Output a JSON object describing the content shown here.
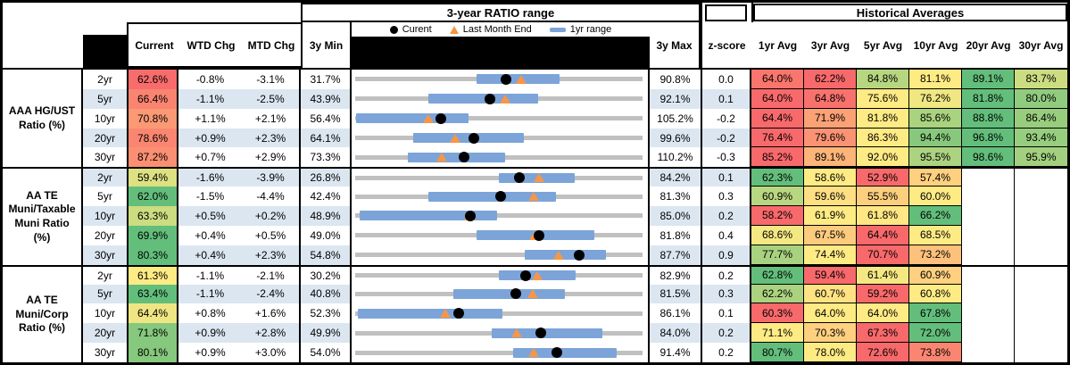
{
  "colors": {
    "scale_low": "#F8696B",
    "scale_mid": "#FFEB84",
    "scale_high": "#63BE7B",
    "stripe": "#DCE6F1",
    "range_line_gray": "#C0C0C0",
    "range_bar_blue": "#7CA4D8",
    "triangle_orange": "#F79646",
    "dot_black": "#000000"
  },
  "chart_data": {
    "type": "table",
    "range_chart_title": "3-year RATIO range",
    "hist_title": "Historical Averages",
    "legend": [
      "Curent",
      "Last Month End",
      "1yr range"
    ],
    "columns": [
      "Current",
      "WTD Chg",
      "MTD Chg",
      "3y Min",
      "3y Max",
      "z-score",
      "1yr Avg",
      "3yr Avg",
      "5yr Avg",
      "10yr Avg",
      "20yr Avg",
      "30yr Avg"
    ],
    "groups": [
      {
        "label": "AAA HG/UST\nRatio (%)",
        "rows": [
          {
            "tenor": "2yr",
            "current": 62.6,
            "wtd": -0.8,
            "mtd": -3.1,
            "min3y": 31.7,
            "max3y": 90.8,
            "zscore": 0.0,
            "last_month_end": 65.7,
            "yr1_range": [
              56.4,
              73.5
            ],
            "avgs": [
              64.0,
              62.2,
              84.8,
              81.1,
              89.1,
              83.7
            ]
          },
          {
            "tenor": "5yr",
            "current": 66.4,
            "wtd": -1.1,
            "mtd": -2.5,
            "min3y": 43.9,
            "max3y": 92.1,
            "zscore": 0.1,
            "last_month_end": 68.9,
            "yr1_range": [
              56.0,
              74.4
            ],
            "avgs": [
              64.0,
              64.8,
              75.6,
              76.2,
              81.8,
              80.0
            ]
          },
          {
            "tenor": "10yr",
            "current": 70.8,
            "wtd": 1.1,
            "mtd": 2.1,
            "min3y": 56.4,
            "max3y": 105.2,
            "zscore": -0.2,
            "last_month_end": 68.7,
            "yr1_range": [
              56.4,
              75.5
            ],
            "avgs": [
              64.4,
              71.9,
              81.8,
              85.6,
              88.8,
              86.4
            ]
          },
          {
            "tenor": "20yr",
            "current": 78.6,
            "wtd": 0.9,
            "mtd": 2.3,
            "min3y": 64.1,
            "max3y": 99.6,
            "zscore": -0.2,
            "last_month_end": 76.3,
            "yr1_range": [
              71.2,
              84.8
            ],
            "avgs": [
              76.4,
              79.6,
              86.3,
              94.4,
              96.8,
              93.4
            ]
          },
          {
            "tenor": "30yr",
            "current": 87.2,
            "wtd": 0.7,
            "mtd": 2.9,
            "min3y": 73.3,
            "max3y": 110.2,
            "zscore": -0.3,
            "last_month_end": 84.3,
            "yr1_range": [
              80.0,
              92.4
            ],
            "avgs": [
              85.2,
              89.1,
              92.0,
              95.5,
              98.6,
              95.9
            ]
          }
        ]
      },
      {
        "label": "AA TE\nMuni/Taxable\nMuni Ratio\n(%)",
        "rows": [
          {
            "tenor": "2yr",
            "current": 59.4,
            "wtd": -1.6,
            "mtd": -3.9,
            "min3y": 26.8,
            "max3y": 84.2,
            "zscore": 0.1,
            "last_month_end": 63.3,
            "yr1_range": [
              55.3,
              70.4
            ],
            "avgs": [
              62.3,
              58.6,
              52.9,
              57.4,
              null,
              null
            ]
          },
          {
            "tenor": "5yr",
            "current": 62.0,
            "wtd": -1.5,
            "mtd": -4.4,
            "min3y": 42.4,
            "max3y": 81.3,
            "zscore": 0.3,
            "last_month_end": 66.4,
            "yr1_range": [
              52.2,
              69.5
            ],
            "avgs": [
              60.9,
              59.6,
              55.5,
              60.0,
              null,
              null
            ],
            "avg_bg_overrides": {
              "2": "#FBCF7D"
            }
          },
          {
            "tenor": "10yr",
            "current": 63.3,
            "wtd": 0.5,
            "mtd": 0.2,
            "min3y": 48.9,
            "max3y": 85.0,
            "zscore": 0.2,
            "last_month_end": 63.1,
            "yr1_range": [
              49.3,
              66.6
            ],
            "avgs": [
              58.2,
              61.9,
              61.8,
              66.2,
              null,
              null
            ]
          },
          {
            "tenor": "20yr",
            "current": 69.9,
            "wtd": 0.4,
            "mtd": 0.5,
            "min3y": 49.0,
            "max3y": 81.8,
            "zscore": 0.4,
            "last_month_end": 69.4,
            "yr1_range": [
              62.8,
              76.2
            ],
            "avgs": [
              68.6,
              67.5,
              64.4,
              68.5,
              null,
              null
            ]
          },
          {
            "tenor": "30yr",
            "current": 80.3,
            "wtd": 0.4,
            "mtd": 2.3,
            "min3y": 54.8,
            "max3y": 87.7,
            "zscore": 0.9,
            "last_month_end": 78.0,
            "yr1_range": [
              74.1,
              83.4
            ],
            "avgs": [
              77.7,
              74.4,
              70.7,
              73.2,
              null,
              null
            ]
          }
        ]
      },
      {
        "label": "AA TE\nMuni/Corp\nRatio (%)",
        "rows": [
          {
            "tenor": "2yr",
            "current": 61.3,
            "wtd": -1.1,
            "mtd": -2.1,
            "min3y": 30.2,
            "max3y": 82.9,
            "zscore": 0.2,
            "last_month_end": 63.4,
            "yr1_range": [
              56.4,
              70.5
            ],
            "avgs": [
              62.8,
              59.4,
              61.4,
              60.9,
              null,
              null
            ]
          },
          {
            "tenor": "5yr",
            "current": 63.4,
            "wtd": -1.1,
            "mtd": -2.4,
            "min3y": 40.8,
            "max3y": 81.5,
            "zscore": 0.3,
            "last_month_end": 65.8,
            "yr1_range": [
              54.6,
              70.4
            ],
            "avgs": [
              62.2,
              60.7,
              59.2,
              60.8,
              null,
              null
            ]
          },
          {
            "tenor": "10yr",
            "current": 64.4,
            "wtd": 0.8,
            "mtd": 1.6,
            "min3y": 52.3,
            "max3y": 86.1,
            "zscore": 0.1,
            "last_month_end": 62.8,
            "yr1_range": [
              52.5,
              69.5
            ],
            "avgs": [
              60.3,
              64.0,
              64.0,
              67.8,
              null,
              null
            ]
          },
          {
            "tenor": "20yr",
            "current": 71.8,
            "wtd": 0.9,
            "mtd": 2.8,
            "min3y": 49.9,
            "max3y": 84.0,
            "zscore": 0.2,
            "last_month_end": 69.0,
            "yr1_range": [
              66.0,
              79.1
            ],
            "avgs": [
              71.1,
              70.3,
              67.3,
              72.0,
              null,
              null
            ]
          },
          {
            "tenor": "30yr",
            "current": 80.1,
            "wtd": 0.9,
            "mtd": 3.0,
            "min3y": 54.0,
            "max3y": 91.4,
            "zscore": 0.2,
            "last_month_end": 77.1,
            "yr1_range": [
              74.5,
              87.9
            ],
            "avgs": [
              80.7,
              78.0,
              72.6,
              73.8,
              null,
              null
            ]
          }
        ]
      }
    ]
  }
}
